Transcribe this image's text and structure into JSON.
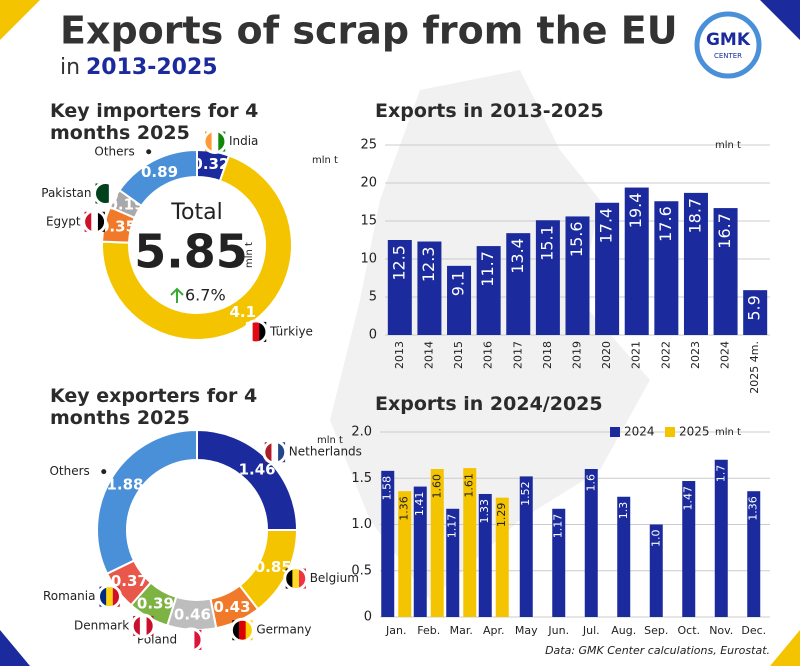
{
  "title": "Exports of scrap from the EU",
  "subtitle_prefix": "in",
  "subtitle": "2013-2025",
  "logo_top": "GMK",
  "logo_bottom": "CENTER",
  "source": "Data: GMK Center calculations, Eurostat.",
  "chart_data": [
    {
      "type": "pie",
      "title": "Key importers for 4 months 2025",
      "unit": "mln t",
      "categories": [
        "India",
        "Türkiye",
        "Egypt",
        "Pakistan",
        "Others"
      ],
      "values": [
        0.32,
        4.1,
        0.35,
        0.19,
        0.89
      ],
      "colors": [
        "#1b2a9c",
        "#f5c400",
        "#f07a2a",
        "#a9a9a9",
        "#4a90d9"
      ],
      "center": {
        "label": "Total",
        "value": "5.85",
        "unit": "mln t",
        "change": "6.7%"
      }
    },
    {
      "type": "bar",
      "title": "Exports in 2013-2025",
      "unit": "mln t",
      "categories": [
        "2013",
        "2014",
        "2015",
        "2016",
        "2017",
        "2018",
        "2019",
        "2020",
        "2021",
        "2022",
        "2023",
        "2024",
        "2025 4m."
      ],
      "values": [
        12.5,
        12.3,
        9.1,
        11.7,
        13.4,
        15.1,
        15.6,
        17.4,
        19.4,
        17.6,
        18.7,
        16.7,
        5.9
      ],
      "color": "#1b2a9c",
      "ylim": [
        0,
        25
      ],
      "yticks": [
        0,
        5,
        10,
        15,
        20,
        25
      ],
      "grid": true
    },
    {
      "type": "pie",
      "title": "Key exporters for 4 months 2025",
      "unit": "mln t",
      "categories": [
        "Netherlands",
        "Belgium",
        "Germany",
        "Poland",
        "Denmark",
        "Romania",
        "Others"
      ],
      "values": [
        1.46,
        0.85,
        0.43,
        0.46,
        0.39,
        0.37,
        1.88
      ],
      "colors": [
        "#1b2a9c",
        "#f5c400",
        "#f07a2a",
        "#bdbdbd",
        "#7cb342",
        "#e8574a",
        "#4a90d9"
      ]
    },
    {
      "type": "grouped-bar",
      "title": "Exports in 2024/2025",
      "unit": "mln t",
      "categories": [
        "Jan.",
        "Feb.",
        "Mar.",
        "Apr.",
        "May",
        "Jun.",
        "Jul.",
        "Aug.",
        "Sep.",
        "Oct.",
        "Nov.",
        "Dec."
      ],
      "series": [
        {
          "name": "2024",
          "color": "#1b2a9c",
          "values": [
            1.58,
            1.41,
            1.17,
            1.33,
            1.52,
            1.17,
            1.6,
            1.3,
            1.0,
            1.47,
            1.7,
            1.36
          ],
          "value_labels": [
            "1.58",
            "1.41",
            "1.17",
            "1.33",
            "1.52",
            "1.17",
            "1.6",
            "1.3",
            "1.0",
            "1.47",
            "1.7",
            "1.36"
          ]
        },
        {
          "name": "2025",
          "color": "#f5c400",
          "values": [
            1.36,
            1.6,
            1.61,
            1.29,
            null,
            null,
            null,
            null,
            null,
            null,
            null,
            null
          ],
          "value_labels": [
            "1.36",
            "1.60",
            "1.61",
            "1.29",
            null,
            null,
            null,
            null,
            null,
            null,
            null,
            null
          ]
        }
      ],
      "ylim": [
        0,
        2.0
      ],
      "yticks": [
        0,
        0.5,
        {
          "value": 1.0,
          "label": "1.0"
        },
        1.5,
        {
          "value": 2.0,
          "label": "2.0"
        }
      ],
      "grid": true
    }
  ]
}
